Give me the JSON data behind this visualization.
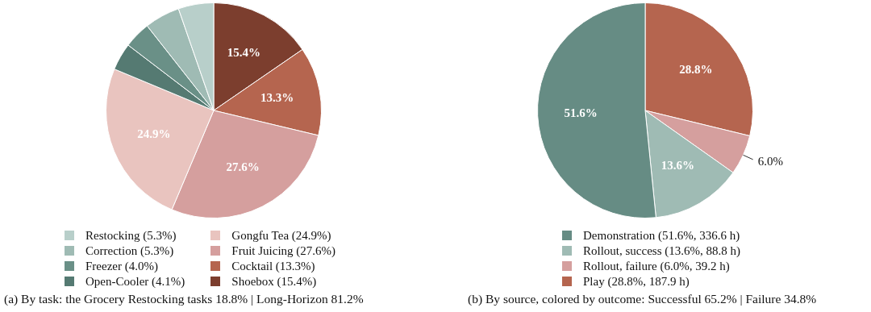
{
  "chart_data": [
    {
      "type": "pie",
      "title": "(a) By task: the Grocery Restocking tasks 18.8% | Long-Horizon 81.2%",
      "categories": [
        "Restocking (5.3%)",
        "Correction (5.3%)",
        "Freezer (4.0%)",
        "Open-Cooler (4.1%)",
        "Gongfu Tea (24.9%)",
        "Fruit Juicing (27.6%)",
        "Cocktail (13.3%)",
        "Shoebox (15.4%)"
      ],
      "values": [
        5.3,
        5.3,
        4.0,
        4.1,
        24.9,
        27.6,
        13.3,
        15.4
      ],
      "colors": [
        "#b8cfca",
        "#9fbbb4",
        "#6a9087",
        "#557a72",
        "#e9c4bf",
        "#d59f9e",
        "#b5654f",
        "#7c3e2e"
      ],
      "value_labels": [
        null,
        null,
        null,
        null,
        "24.9%",
        "27.6%",
        "13.3%",
        "15.4%"
      ],
      "legend": "bottom"
    },
    {
      "type": "pie",
      "title": "(b) By source, colored by outcome: Successful 65.2% | Failure 34.8%",
      "categories": [
        "Demonstration (51.6%, 336.6 h)",
        "Rollout, success (13.6%, 88.8 h)",
        "Rollout, failure (6.0%, 39.2 h)",
        "Play (28.8%, 187.9 h)"
      ],
      "values": [
        51.6,
        13.6,
        6.0,
        28.8
      ],
      "colors": [
        "#668c84",
        "#9fbbb4",
        "#d59f9e",
        "#b5654f"
      ],
      "value_labels": [
        "51.6%",
        "13.6%",
        "6.0%",
        "28.8%"
      ],
      "legend": "bottom"
    }
  ]
}
